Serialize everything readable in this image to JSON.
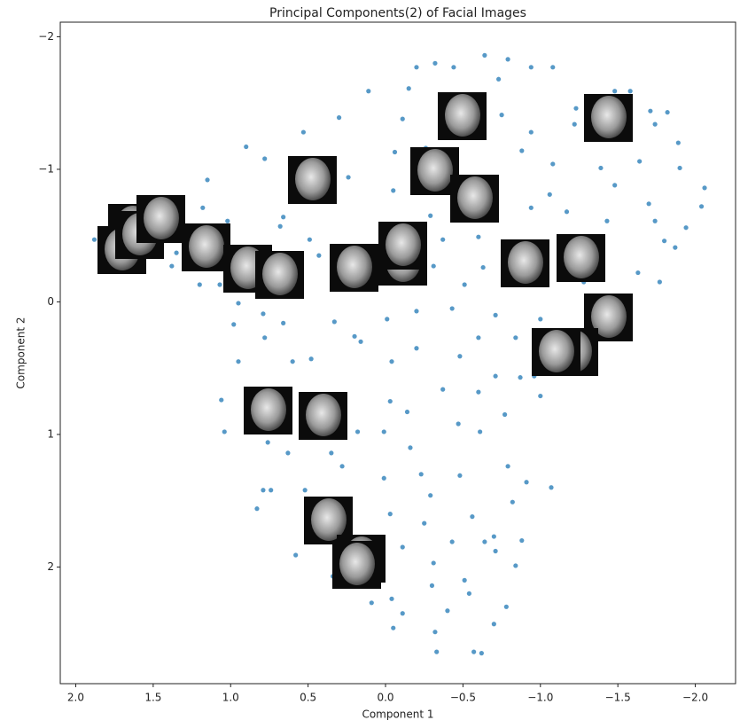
{
  "chart_data": {
    "type": "scatter",
    "title": "Principal Components(2) of Facial Images",
    "x_label": "Component 1",
    "y_label": "Component 2",
    "color": "#1f77b4",
    "xlim": [
      2.1,
      -2.26
    ],
    "ylim": [
      2.88,
      -2.11
    ],
    "xticks": [
      {
        "value": 2,
        "label": "2.0"
      },
      {
        "value": 1.5,
        "label": "1.5"
      },
      {
        "value": 1,
        "label": "1.0"
      },
      {
        "value": 0.5,
        "label": "0.5"
      },
      {
        "value": 0,
        "label": "0.0"
      },
      {
        "value": -0.5,
        "label": "−0.5"
      },
      {
        "value": -1,
        "label": "−1.0"
      },
      {
        "value": -1.5,
        "label": "−1.5"
      },
      {
        "value": -2,
        "label": "−2.0"
      }
    ],
    "yticks": [
      {
        "value": -2,
        "label": "−2"
      },
      {
        "value": -1,
        "label": "−1"
      },
      0,
      1,
      2
    ],
    "x": [
      -0.64,
      -0.32,
      -0.2,
      -0.44,
      -0.79,
      -0.94,
      -1.08,
      -0.15,
      0.11,
      -0.73,
      -1.48,
      -1.58,
      -1.23,
      -1.71,
      -1.82,
      0.3,
      -0.11,
      -0.75,
      -0.94,
      -1.22,
      -1.74,
      -1.89,
      0.53,
      0.9,
      0.78,
      -0.06,
      -0.26,
      -0.88,
      -1.08,
      -1.39,
      -1.64,
      -1.9,
      1.15,
      0.24,
      -0.05,
      -0.37,
      -1.06,
      -1.48,
      -1.7,
      -2.06,
      -2.04,
      -1.94,
      -1.74,
      -1.8,
      -1.43,
      -1.17,
      -0.94,
      -0.71,
      -0.29,
      0.66,
      0.68,
      1.18,
      1.02,
      0.49,
      0.43,
      -0.37,
      -0.6,
      -0.63,
      -0.31,
      -0.51,
      -1.28,
      -1.63,
      -1.87,
      -1.77,
      1.88,
      1.82,
      1.66,
      1.66,
      1.35,
      1.38,
      1.2,
      1.07,
      0.95,
      0.87,
      0.98,
      0.79,
      0.66,
      0.78,
      0.6,
      0.48,
      0.95,
      0.33,
      0.2,
      0.16,
      -0.01,
      -0.2,
      -0.43,
      -0.71,
      -0.6,
      -0.84,
      -1.0,
      -0.96,
      -0.87,
      -0.71,
      -0.48,
      -0.2,
      -0.04,
      -0.03,
      -0.14,
      -0.37,
      -0.6,
      -1.0,
      -0.77,
      -0.47,
      -0.61,
      0.01,
      -0.16,
      0.18,
      1.06,
      1.04,
      0.76,
      0.63,
      0.35,
      0.28,
      0.01,
      -0.23,
      -0.48,
      -0.79,
      -0.91,
      -1.07,
      -0.82,
      -0.29,
      -0.03,
      -0.25,
      -0.56,
      -0.7,
      -0.88,
      -0.84,
      -0.64,
      -0.43,
      -0.11,
      -0.31,
      -0.51,
      -0.3,
      -0.04,
      -0.11,
      -0.05,
      -0.54,
      -0.7,
      -0.78,
      -0.4,
      -0.32,
      -0.33,
      -0.57,
      -0.62,
      0.79,
      0.74,
      0.83,
      0.52,
      0.58,
      0.34,
      0.09,
      -0.71
    ],
    "values": [
      -1.86,
      -1.8,
      -1.77,
      -1.77,
      -1.83,
      -1.77,
      -1.77,
      -1.61,
      -1.59,
      -1.68,
      -1.59,
      -1.59,
      -1.46,
      -1.44,
      -1.43,
      -1.39,
      -1.38,
      -1.41,
      -1.28,
      -1.34,
      -1.34,
      -1.2,
      -1.28,
      -1.17,
      -1.08,
      -1.13,
      -1.16,
      -1.14,
      -1.04,
      -1.01,
      -1.06,
      -1.01,
      -0.92,
      -0.94,
      -0.84,
      -0.88,
      -0.81,
      -0.88,
      -0.74,
      -0.86,
      -0.72,
      -0.56,
      -0.61,
      -0.46,
      -0.61,
      -0.68,
      -0.71,
      -0.68,
      -0.65,
      -0.64,
      -0.57,
      -0.71,
      -0.61,
      -0.47,
      -0.35,
      -0.47,
      -0.49,
      -0.26,
      -0.27,
      -0.13,
      -0.15,
      -0.22,
      -0.41,
      -0.15,
      -0.47,
      -0.53,
      -0.65,
      -0.39,
      -0.37,
      -0.27,
      -0.13,
      -0.13,
      0.01,
      -0.21,
      0.17,
      0.09,
      0.16,
      0.27,
      0.45,
      0.43,
      0.45,
      0.15,
      0.26,
      0.3,
      0.13,
      0.07,
      0.05,
      0.1,
      0.27,
      0.27,
      0.13,
      0.56,
      0.57,
      0.56,
      0.41,
      0.35,
      0.45,
      0.75,
      0.83,
      0.66,
      0.68,
      0.71,
      0.85,
      0.92,
      0.98,
      0.98,
      1.1,
      0.98,
      0.74,
      0.98,
      1.06,
      1.14,
      1.14,
      1.24,
      1.33,
      1.3,
      1.31,
      1.24,
      1.36,
      1.4,
      1.51,
      1.46,
      1.6,
      1.67,
      1.62,
      1.77,
      1.8,
      1.99,
      1.81,
      1.81,
      1.85,
      1.97,
      2.1,
      2.14,
      2.24,
      2.35,
      2.46,
      2.2,
      2.43,
      2.3,
      2.33,
      2.49,
      2.64,
      2.64,
      2.65,
      1.42,
      1.42,
      1.56,
      1.42,
      1.91,
      2.07,
      2.27,
      1.88
    ]
  }
}
